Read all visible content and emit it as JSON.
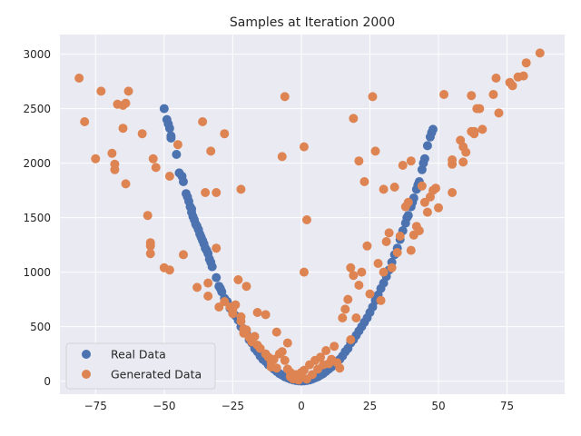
{
  "chart_data": {
    "type": "scatter",
    "title": "Samples at Iteration 2000",
    "xlabel": "",
    "ylabel": "",
    "xlim": [
      -88,
      96
    ],
    "ylim": [
      -120,
      3180
    ],
    "xticks": [
      -75,
      -50,
      -25,
      0,
      25,
      50,
      75
    ],
    "yticks": [
      0,
      500,
      1000,
      1500,
      2000,
      2500,
      3000
    ],
    "grid": true,
    "legend_position": "lower-left",
    "series": [
      {
        "name": "Real Data",
        "color": "#4c72b0",
        "points": [
          [
            -50,
            2500
          ],
          [
            -49,
            2400
          ],
          [
            -48.5,
            2360
          ],
          [
            -48,
            2320
          ],
          [
            -47.5,
            2250
          ],
          [
            -47.5,
            2230
          ],
          [
            -45.5,
            2080
          ],
          [
            -44.5,
            1910
          ],
          [
            -43.5,
            1880
          ],
          [
            -43,
            1830
          ],
          [
            -42,
            1720
          ],
          [
            -41.5,
            1690
          ],
          [
            -41,
            1650
          ],
          [
            -40.5,
            1600
          ],
          [
            -40,
            1580
          ],
          [
            -40,
            1550
          ],
          [
            -39.5,
            1510
          ],
          [
            -39,
            1480
          ],
          [
            -38.5,
            1440
          ],
          [
            -38,
            1420
          ],
          [
            -37.5,
            1390
          ],
          [
            -37,
            1350
          ],
          [
            -36.5,
            1320
          ],
          [
            -36,
            1290
          ],
          [
            -35.5,
            1260
          ],
          [
            -35,
            1220
          ],
          [
            -34.5,
            1200
          ],
          [
            -34,
            1170
          ],
          [
            -33.5,
            1120
          ],
          [
            -33,
            1090
          ],
          [
            -32.5,
            1050
          ],
          [
            -31,
            950
          ],
          [
            -30,
            870
          ],
          [
            -29.5,
            850
          ],
          [
            -29,
            820
          ],
          [
            -28,
            760
          ],
          [
            -27,
            730
          ],
          [
            -26,
            670
          ],
          [
            -25,
            630
          ],
          [
            -24,
            600
          ],
          [
            -23,
            560
          ],
          [
            -22,
            500
          ],
          [
            -21,
            470
          ],
          [
            -20,
            440
          ],
          [
            -19,
            380
          ],
          [
            -18,
            350
          ],
          [
            -17,
            300
          ],
          [
            -16,
            270
          ],
          [
            -15,
            230
          ],
          [
            -14,
            200
          ],
          [
            -13,
            180
          ],
          [
            -12,
            150
          ],
          [
            -11,
            130
          ],
          [
            -10,
            110
          ],
          [
            -9,
            90
          ],
          [
            -8,
            70
          ],
          [
            -7,
            55
          ],
          [
            -6,
            40
          ],
          [
            -5,
            30
          ],
          [
            -4,
            20
          ],
          [
            -3,
            12
          ],
          [
            -2,
            6
          ],
          [
            -1,
            3
          ],
          [
            0,
            1
          ],
          [
            1,
            3
          ],
          [
            2,
            6
          ],
          [
            3,
            12
          ],
          [
            4,
            20
          ],
          [
            5,
            30
          ],
          [
            6,
            40
          ],
          [
            7,
            55
          ],
          [
            8,
            70
          ],
          [
            9,
            90
          ],
          [
            10,
            110
          ],
          [
            11,
            130
          ],
          [
            12,
            150
          ],
          [
            13,
            180
          ],
          [
            14,
            200
          ],
          [
            15,
            230
          ],
          [
            16,
            270
          ],
          [
            17,
            300
          ],
          [
            18,
            350
          ],
          [
            19,
            380
          ],
          [
            20,
            420
          ],
          [
            21,
            460
          ],
          [
            22,
            500
          ],
          [
            23,
            540
          ],
          [
            24,
            580
          ],
          [
            25,
            630
          ],
          [
            26,
            680
          ],
          [
            27,
            740
          ],
          [
            28,
            790
          ],
          [
            29,
            850
          ],
          [
            30,
            900
          ],
          [
            31,
            960
          ],
          [
            32,
            1020
          ],
          [
            33,
            1090
          ],
          [
            34,
            1160
          ],
          [
            35,
            1220
          ],
          [
            36,
            1300
          ],
          [
            37,
            1380
          ],
          [
            38,
            1450
          ],
          [
            38.5,
            1500
          ],
          [
            39,
            1520
          ],
          [
            40,
            1600
          ],
          [
            40.5,
            1640
          ],
          [
            41,
            1680
          ],
          [
            42,
            1760
          ],
          [
            42.5,
            1800
          ],
          [
            43,
            1830
          ],
          [
            44,
            1940
          ],
          [
            44.5,
            2000
          ],
          [
            45,
            2040
          ],
          [
            46,
            2160
          ],
          [
            47,
            2240
          ],
          [
            47.5,
            2280
          ],
          [
            48,
            2310
          ]
        ]
      },
      {
        "name": "Generated Data",
        "color": "#dd8452",
        "points": [
          [
            -81,
            2780
          ],
          [
            -79,
            2380
          ],
          [
            -75,
            2040
          ],
          [
            -73,
            2660
          ],
          [
            -69,
            2090
          ],
          [
            -68,
            1990
          ],
          [
            -68,
            1940
          ],
          [
            -67,
            2540
          ],
          [
            -65,
            2320
          ],
          [
            -65,
            2530
          ],
          [
            -64,
            2550
          ],
          [
            -64,
            1810
          ],
          [
            -63,
            2660
          ],
          [
            -58,
            2270
          ],
          [
            -56,
            1520
          ],
          [
            -55,
            1270
          ],
          [
            -55,
            1240
          ],
          [
            -55,
            1170
          ],
          [
            -54,
            2040
          ],
          [
            -53,
            1960
          ],
          [
            -50,
            1040
          ],
          [
            -48,
            1020
          ],
          [
            -48,
            1880
          ],
          [
            -45,
            2170
          ],
          [
            -43,
            1160
          ],
          [
            -38,
            860
          ],
          [
            -36,
            2380
          ],
          [
            -35,
            1730
          ],
          [
            -34,
            900
          ],
          [
            -34,
            780
          ],
          [
            -33,
            2110
          ],
          [
            -31,
            1220
          ],
          [
            -31,
            1730
          ],
          [
            -30,
            680
          ],
          [
            -28,
            2270
          ],
          [
            -28,
            730
          ],
          [
            -26,
            680
          ],
          [
            -25,
            650
          ],
          [
            -25,
            620
          ],
          [
            -24,
            700
          ],
          [
            -23,
            930
          ],
          [
            -22,
            1760
          ],
          [
            -22,
            590
          ],
          [
            -22,
            550
          ],
          [
            -21,
            480
          ],
          [
            -21,
            440
          ],
          [
            -20,
            870
          ],
          [
            -20,
            470
          ],
          [
            -19,
            400
          ],
          [
            -18,
            360
          ],
          [
            -17,
            410
          ],
          [
            -16,
            630
          ],
          [
            -16,
            330
          ],
          [
            -15,
            300
          ],
          [
            -13,
            610
          ],
          [
            -13,
            250
          ],
          [
            -12,
            220
          ],
          [
            -11,
            170
          ],
          [
            -11,
            130
          ],
          [
            -10,
            200
          ],
          [
            -9,
            120
          ],
          [
            -9,
            450
          ],
          [
            -8,
            250
          ],
          [
            -7,
            2060
          ],
          [
            -7,
            270
          ],
          [
            -6,
            2610
          ],
          [
            -6,
            190
          ],
          [
            -5,
            350
          ],
          [
            -5,
            110
          ],
          [
            -4,
            80
          ],
          [
            -4,
            40
          ],
          [
            -3,
            20
          ],
          [
            -2,
            60
          ],
          [
            -1,
            10
          ],
          [
            0,
            80
          ],
          [
            0,
            40
          ],
          [
            1,
            2150
          ],
          [
            1,
            1000
          ],
          [
            1,
            100
          ],
          [
            2,
            1480
          ],
          [
            2,
            20
          ],
          [
            3,
            150
          ],
          [
            4,
            60
          ],
          [
            5,
            190
          ],
          [
            6,
            110
          ],
          [
            7,
            220
          ],
          [
            8,
            150
          ],
          [
            9,
            280
          ],
          [
            10,
            160
          ],
          [
            11,
            200
          ],
          [
            12,
            320
          ],
          [
            13,
            170
          ],
          [
            14,
            120
          ],
          [
            15,
            580
          ],
          [
            16,
            660
          ],
          [
            17,
            750
          ],
          [
            18,
            1040
          ],
          [
            18,
            380
          ],
          [
            19,
            2410
          ],
          [
            19,
            970
          ],
          [
            20,
            580
          ],
          [
            21,
            2020
          ],
          [
            21,
            880
          ],
          [
            22,
            1000
          ],
          [
            23,
            1830
          ],
          [
            24,
            1240
          ],
          [
            25,
            800
          ],
          [
            26,
            2610
          ],
          [
            27,
            2110
          ],
          [
            28,
            1080
          ],
          [
            29,
            740
          ],
          [
            30,
            1760
          ],
          [
            30,
            1000
          ],
          [
            31,
            1280
          ],
          [
            32,
            1360
          ],
          [
            33,
            1040
          ],
          [
            34,
            1780
          ],
          [
            35,
            1180
          ],
          [
            36,
            1330
          ],
          [
            37,
            1980
          ],
          [
            38,
            1600
          ],
          [
            39,
            1640
          ],
          [
            40,
            1200
          ],
          [
            40,
            2020
          ],
          [
            41,
            1340
          ],
          [
            42,
            1420
          ],
          [
            43,
            1380
          ],
          [
            44,
            1790
          ],
          [
            45,
            1640
          ],
          [
            46,
            1550
          ],
          [
            47,
            1690
          ],
          [
            48,
            1750
          ],
          [
            49,
            1770
          ],
          [
            50,
            1590
          ],
          [
            52,
            2630
          ],
          [
            55,
            1990
          ],
          [
            55,
            2030
          ],
          [
            55,
            1730
          ],
          [
            58,
            2210
          ],
          [
            59,
            2150
          ],
          [
            59,
            2010
          ],
          [
            60,
            2100
          ],
          [
            62,
            2620
          ],
          [
            62,
            2290
          ],
          [
            63,
            2270
          ],
          [
            63,
            2290
          ],
          [
            64,
            2500
          ],
          [
            65,
            2500
          ],
          [
            66,
            2310
          ],
          [
            70,
            2630
          ],
          [
            71,
            2780
          ],
          [
            72,
            2460
          ],
          [
            76,
            2740
          ],
          [
            77,
            2710
          ],
          [
            79,
            2790
          ],
          [
            81,
            2800
          ],
          [
            82,
            2920
          ],
          [
            87,
            3010
          ]
        ]
      }
    ]
  }
}
